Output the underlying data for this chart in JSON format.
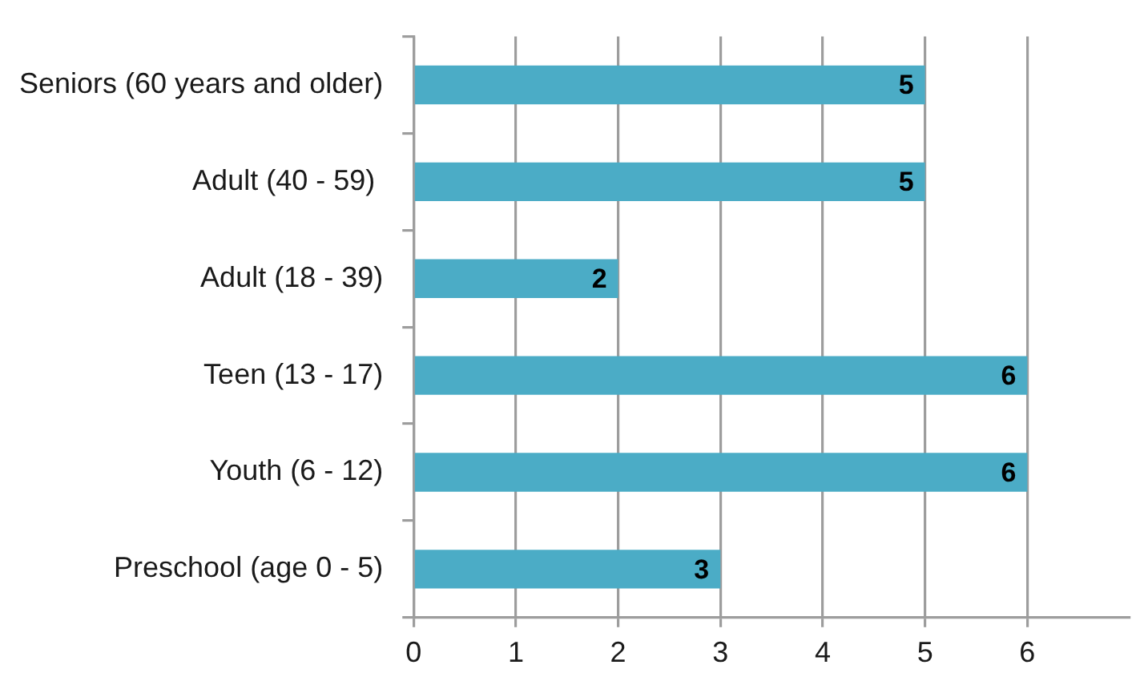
{
  "chart_data": {
    "type": "bar",
    "orientation": "horizontal",
    "categories": [
      "Seniors (60 years and older)",
      "Adult (40 - 59) ",
      "Adult (18 - 39)",
      "Teen (13 - 17)",
      "Youth (6 - 12)",
      "Preschool (age 0 - 5)"
    ],
    "values": [
      5,
      5,
      2,
      6,
      6,
      3
    ],
    "color": "#4bacc6",
    "xlim": [
      0,
      7
    ],
    "xticks": [
      0,
      1,
      2,
      3,
      4,
      5,
      6
    ],
    "grid": "x",
    "data_labels": true
  }
}
